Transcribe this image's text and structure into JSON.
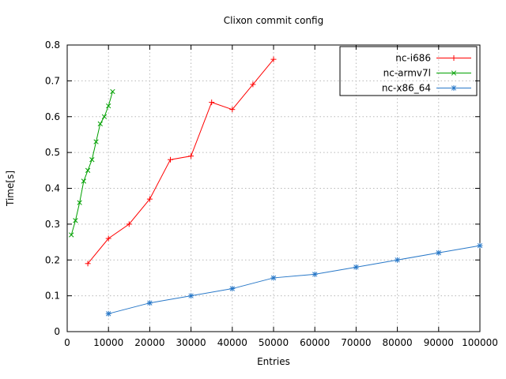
{
  "page": {
    "background": "#ffffff",
    "text_color": "#000000",
    "grid_color": "#b8b8b8",
    "border_color": "#000000"
  },
  "chart_data": {
    "type": "line",
    "title": "Clixon commit config",
    "xlabel": "Entries",
    "ylabel": "Time[s]",
    "xlim": [
      0,
      100000
    ],
    "ylim": [
      0,
      0.8
    ],
    "xticks": [
      0,
      10000,
      20000,
      30000,
      40000,
      50000,
      60000,
      70000,
      80000,
      90000,
      100000
    ],
    "yticks": [
      0,
      0.1,
      0.2,
      0.3,
      0.4,
      0.5,
      0.6,
      0.7,
      0.8
    ],
    "grid": true,
    "legend_position": "top-right",
    "series": [
      {
        "name": "nc-i686",
        "color": "#ff0000",
        "marker": "plus",
        "x": [
          5000,
          10000,
          15000,
          20000,
          25000,
          30000,
          35000,
          40000,
          45000,
          50000
        ],
        "y": [
          0.19,
          0.26,
          0.3,
          0.37,
          0.48,
          0.49,
          0.64,
          0.62,
          0.69,
          0.76
        ]
      },
      {
        "name": "nc-armv7l",
        "color": "#00a000",
        "marker": "cross",
        "x": [
          1000,
          2000,
          3000,
          4000,
          5000,
          6000,
          7000,
          8000,
          9000,
          10000,
          11000
        ],
        "y": [
          0.27,
          0.31,
          0.36,
          0.42,
          0.45,
          0.48,
          0.53,
          0.58,
          0.6,
          0.63,
          0.67
        ]
      },
      {
        "name": "nc-x86_64",
        "color": "#2878c8",
        "marker": "asterisk",
        "x": [
          10000,
          20000,
          30000,
          40000,
          50000,
          60000,
          70000,
          80000,
          90000,
          100000
        ],
        "y": [
          0.05,
          0.08,
          0.1,
          0.12,
          0.15,
          0.16,
          0.18,
          0.2,
          0.22,
          0.24
        ]
      }
    ]
  }
}
